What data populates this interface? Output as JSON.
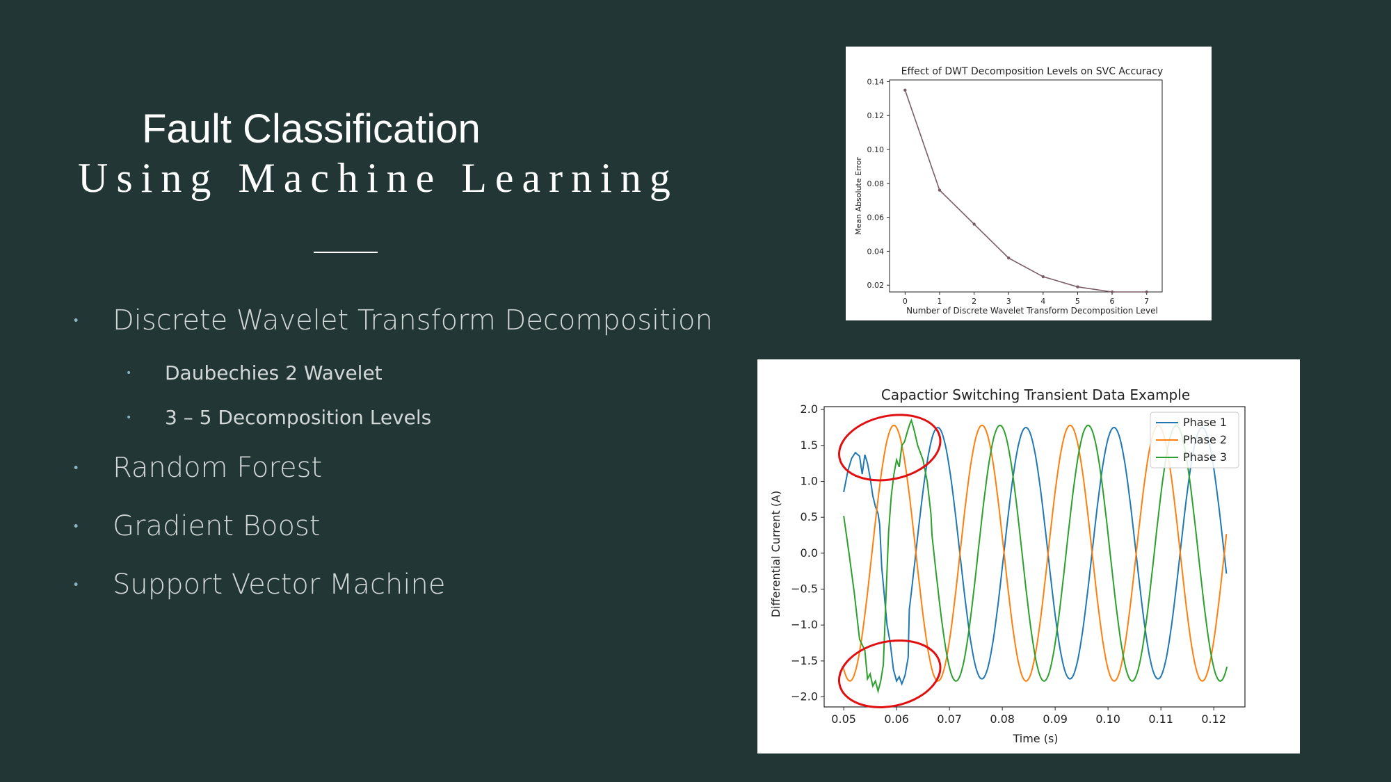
{
  "slide": {
    "title_line1": "Fault Classification",
    "title_line2": "Using Machine Learning",
    "bullets": [
      {
        "level": 1,
        "text": "Discrete Wavelet Transform Decomposition"
      },
      {
        "level": 2,
        "text": "Daubechies 2 Wavelet"
      },
      {
        "level": 2,
        "text": "3 – 5 Decomposition Levels"
      },
      {
        "level": 1,
        "text": "Random Forest"
      },
      {
        "level": 1,
        "text": "Gradient Boost"
      },
      {
        "level": 1,
        "text": "Support Vector Machine"
      }
    ],
    "colors": {
      "background": "#223735",
      "title": "#ffffff",
      "bullet_text": "#d2d8d7",
      "bullet_dot": "#8ab4c0"
    }
  },
  "chart_data": [
    {
      "type": "line",
      "title": "Effect of DWT Decomposition Levels on SVC Accuracy",
      "xlabel": "Number of Discrete Wavelet Transform Decomposition Level",
      "ylabel": "Mean Absolute Error",
      "x": [
        0,
        1,
        2,
        3,
        4,
        5,
        6,
        7
      ],
      "xticks": [
        "0",
        "1",
        "2",
        "3",
        "4",
        "5",
        "6",
        "7"
      ],
      "yticks": [
        "0.02",
        "0.04",
        "0.06",
        "0.08",
        "0.10",
        "0.12",
        "0.14"
      ],
      "xlim": [
        -0.45,
        7.45
      ],
      "ylim": [
        0.016,
        0.141
      ],
      "series": [
        {
          "values": [
            0.135,
            0.076,
            0.056,
            0.036,
            0.025,
            0.019,
            0.016,
            0.016
          ],
          "color": "#7a5c66"
        }
      ],
      "grid": false
    },
    {
      "type": "line",
      "title": "Capactior Switching Transient Data Example",
      "xlabel": "Time (s)",
      "ylabel": "Differential Current (A)",
      "xticks": [
        "0.05",
        "0.06",
        "0.07",
        "0.08",
        "0.09",
        "0.10",
        "0.11",
        "0.12"
      ],
      "yticks": [
        "2.0",
        "1.5",
        "1.0",
        "0.5",
        "0.0",
        "−0.5",
        "−1.0",
        "−1.5",
        "−2.0"
      ],
      "xlim": [
        0.0463,
        0.1259
      ],
      "ylim": [
        -2.14,
        2.04
      ],
      "legend_position": "top-right",
      "grid": false,
      "series": [
        {
          "name": "Phase 1",
          "color": "#1f77b4",
          "amplitude": 1.75,
          "frequency_hz": 60,
          "phase_deg": 0,
          "transient_points": [
            [
              0.05,
              0.85
            ],
            [
              0.0508,
              1.15
            ],
            [
              0.0515,
              1.32
            ],
            [
              0.0522,
              1.4
            ],
            [
              0.053,
              1.35
            ],
            [
              0.0535,
              1.1
            ],
            [
              0.054,
              1.37
            ],
            [
              0.0545,
              1.25
            ],
            [
              0.055,
              1.05
            ],
            [
              0.0555,
              0.8
            ],
            [
              0.056,
              0.65
            ],
            [
              0.0565,
              0.55
            ],
            [
              0.0568,
              0.4
            ],
            [
              0.0572,
              -0.2
            ],
            [
              0.0577,
              -0.6
            ],
            [
              0.0582,
              -1.0
            ],
            [
              0.0588,
              -1.25
            ],
            [
              0.0594,
              -1.62
            ],
            [
              0.06,
              -1.78
            ],
            [
              0.0605,
              -1.72
            ],
            [
              0.061,
              -1.82
            ],
            [
              0.0616,
              -1.7
            ],
            [
              0.0622,
              -1.45
            ]
          ]
        },
        {
          "name": "Phase 2",
          "color": "#ff7f0e",
          "amplitude": 1.78,
          "frequency_hz": 60,
          "phase_deg": 120,
          "transient_points": []
        },
        {
          "name": "Phase 3",
          "color": "#2ca02c",
          "amplitude": 1.78,
          "frequency_hz": 60,
          "phase_deg": 240,
          "transient_points": [
            [
              0.05,
              0.52
            ],
            [
              0.051,
              0.0
            ],
            [
              0.052,
              -0.55
            ],
            [
              0.053,
              -1.2
            ],
            [
              0.054,
              -1.35
            ],
            [
              0.0545,
              -1.75
            ],
            [
              0.055,
              -1.68
            ],
            [
              0.0555,
              -1.85
            ],
            [
              0.056,
              -1.78
            ],
            [
              0.0565,
              -1.92
            ],
            [
              0.057,
              -1.78
            ],
            [
              0.0575,
              -1.55
            ],
            [
              0.058,
              -0.6
            ],
            [
              0.0585,
              0.3
            ],
            [
              0.059,
              0.8
            ],
            [
              0.0595,
              1.1
            ],
            [
              0.06,
              1.3
            ],
            [
              0.0605,
              1.2
            ],
            [
              0.061,
              1.5
            ],
            [
              0.0615,
              1.55
            ],
            [
              0.062,
              1.68
            ],
            [
              0.0625,
              1.8
            ],
            [
              0.0628,
              1.85
            ],
            [
              0.0633,
              1.72
            ],
            [
              0.064,
              1.5
            ],
            [
              0.065,
              1.3
            ],
            [
              0.0658,
              1.0
            ],
            [
              0.0665,
              0.55
            ]
          ]
        }
      ],
      "annotations": [
        {
          "shape": "ellipse",
          "color": "#e01010",
          "cx": 0.0587,
          "cy": 1.47,
          "rx": 0.0097,
          "ry": 0.44
        },
        {
          "shape": "ellipse",
          "color": "#e01010",
          "cx": 0.0587,
          "cy": -1.68,
          "rx": 0.0097,
          "ry": 0.45
        }
      ]
    }
  ]
}
